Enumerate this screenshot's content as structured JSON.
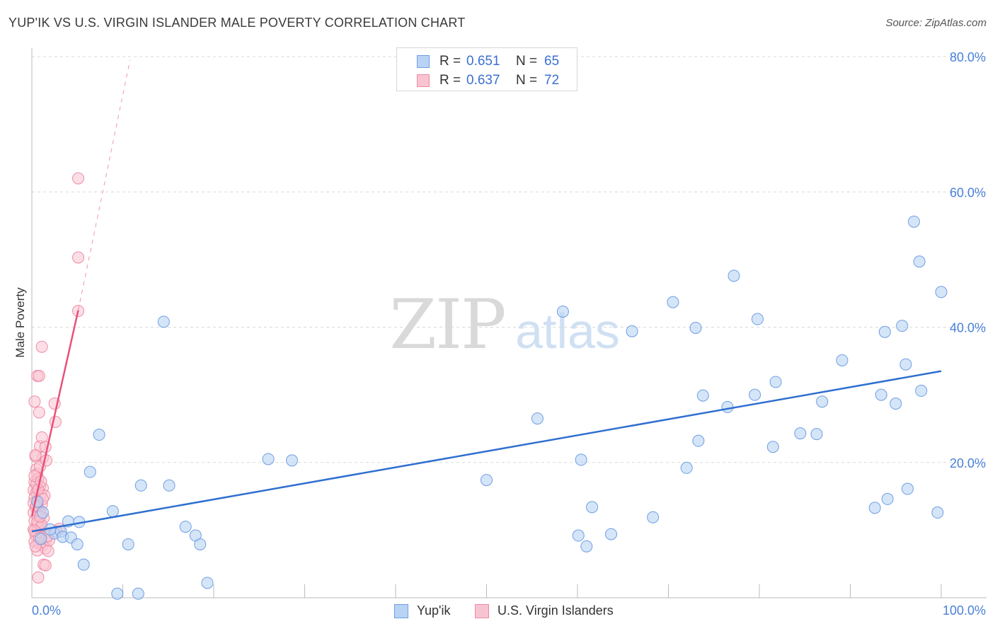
{
  "header": {
    "title": "YUP'IK VS U.S. VIRGIN ISLANDER MALE POVERTY CORRELATION CHART",
    "source": "Source: ZipAtlas.com"
  },
  "legend_top": {
    "rows": [
      {
        "r_label": "R =",
        "r_value": "0.651",
        "n_label": "N =",
        "n_value": "65"
      },
      {
        "r_label": "R =",
        "r_value": "0.637",
        "n_label": "N =",
        "n_value": "72"
      }
    ]
  },
  "legend_bottom": {
    "items": [
      "Yup'ik",
      "U.S. Virgin Islanders"
    ]
  },
  "watermark": {
    "zip": "ZIP",
    "atlas": "atlas"
  },
  "colors": {
    "blue_fill": "#b9d3f4",
    "blue_stroke": "#6f9ee3",
    "blue_line": "#2f6fd0",
    "pink_fill": "#f9c4d2",
    "pink_stroke": "#ee8aa5",
    "pink_line": "#e8507a",
    "tick_label": "#4a80d8"
  },
  "chart_data": {
    "type": "scatter",
    "title": "YUP'IK VS U.S. VIRGIN ISLANDER MALE POVERTY CORRELATION CHART",
    "xlabel": "",
    "ylabel": "Male Poverty",
    "xlim": [
      0,
      100
    ],
    "ylim": [
      0,
      80
    ],
    "x_tick_labels": [
      "0.0%",
      "100.0%"
    ],
    "y_ticks": [
      20,
      40,
      60,
      80
    ],
    "y_tick_labels": [
      "20.0%",
      "40.0%",
      "60.0%",
      "80.0%"
    ],
    "grid": true,
    "legend_position": "top-center",
    "series": [
      {
        "name": "Yup'ik",
        "r": 0.651,
        "n": 65,
        "trend": {
          "x": [
            0,
            100
          ],
          "y": [
            9.8,
            33.5
          ],
          "style": "solid"
        },
        "points": [
          [
            1.0,
            8.7
          ],
          [
            2.5,
            9.5
          ],
          [
            3.2,
            9.8
          ],
          [
            3.4,
            9.0
          ],
          [
            4.0,
            11.3
          ],
          [
            4.3,
            8.9
          ],
          [
            5.0,
            7.9
          ],
          [
            5.2,
            11.2
          ],
          [
            5.7,
            4.9
          ],
          [
            6.4,
            18.6
          ],
          [
            7.4,
            24.1
          ],
          [
            8.9,
            12.8
          ],
          [
            9.4,
            0.6
          ],
          [
            10.6,
            7.9
          ],
          [
            11.7,
            0.6
          ],
          [
            12.0,
            16.6
          ],
          [
            14.5,
            40.8
          ],
          [
            15.1,
            16.6
          ],
          [
            16.9,
            10.5
          ],
          [
            18.0,
            9.2
          ],
          [
            18.5,
            7.9
          ],
          [
            19.3,
            2.2
          ],
          [
            26.0,
            20.5
          ],
          [
            28.6,
            20.3
          ],
          [
            50.0,
            17.4
          ],
          [
            55.6,
            26.5
          ],
          [
            58.4,
            42.3
          ],
          [
            60.1,
            9.2
          ],
          [
            60.4,
            20.4
          ],
          [
            61.0,
            7.6
          ],
          [
            61.6,
            13.4
          ],
          [
            63.7,
            9.4
          ],
          [
            66.0,
            39.4
          ],
          [
            68.3,
            11.9
          ],
          [
            70.5,
            43.7
          ],
          [
            72.0,
            19.2
          ],
          [
            73.0,
            39.9
          ],
          [
            73.3,
            23.2
          ],
          [
            73.8,
            29.9
          ],
          [
            76.5,
            28.2
          ],
          [
            77.2,
            47.6
          ],
          [
            79.5,
            30.0
          ],
          [
            79.8,
            41.2
          ],
          [
            81.5,
            22.3
          ],
          [
            81.8,
            31.9
          ],
          [
            84.5,
            24.3
          ],
          [
            86.3,
            24.2
          ],
          [
            86.9,
            29.0
          ],
          [
            89.1,
            35.1
          ],
          [
            92.7,
            13.3
          ],
          [
            93.4,
            30.0
          ],
          [
            93.8,
            39.3
          ],
          [
            94.1,
            14.6
          ],
          [
            95.0,
            28.7
          ],
          [
            95.7,
            40.2
          ],
          [
            96.1,
            34.5
          ],
          [
            96.3,
            16.1
          ],
          [
            97.0,
            55.6
          ],
          [
            97.6,
            49.7
          ],
          [
            97.8,
            30.6
          ],
          [
            99.6,
            12.6
          ],
          [
            100.0,
            45.2
          ],
          [
            1.2,
            12.6
          ],
          [
            2.0,
            10.1
          ],
          [
            0.6,
            14.2
          ]
        ]
      },
      {
        "name": "U.S. Virgin Islanders",
        "r": 0.637,
        "n": 72,
        "trend": {
          "x": [
            0,
            5.1
          ],
          "y": [
            12.0,
            42.5
          ],
          "style": "solid",
          "extended_x": [
            5.1,
            10.8
          ],
          "extended_y": [
            42.5,
            79.5
          ]
        },
        "points": [
          [
            0.3,
            29.0
          ],
          [
            0.6,
            32.8
          ],
          [
            0.8,
            32.8
          ],
          [
            1.1,
            37.1
          ],
          [
            0.8,
            27.4
          ],
          [
            0.9,
            22.4
          ],
          [
            1.1,
            23.7
          ],
          [
            1.5,
            22.3
          ],
          [
            1.2,
            20.7
          ],
          [
            2.5,
            28.7
          ],
          [
            2.6,
            26.0
          ],
          [
            0.4,
            20.9
          ],
          [
            0.5,
            19.0
          ],
          [
            0.6,
            18.3
          ],
          [
            0.7,
            17.6
          ],
          [
            0.3,
            17.1
          ],
          [
            0.9,
            16.5
          ],
          [
            1.2,
            16.2
          ],
          [
            0.2,
            15.9
          ],
          [
            0.5,
            15.6
          ],
          [
            1.0,
            15.2
          ],
          [
            0.3,
            14.8
          ],
          [
            0.7,
            14.3
          ],
          [
            1.1,
            13.8
          ],
          [
            0.4,
            13.4
          ],
          [
            0.8,
            13.0
          ],
          [
            0.2,
            12.6
          ],
          [
            0.6,
            12.1
          ],
          [
            1.3,
            11.8
          ],
          [
            0.3,
            11.4
          ],
          [
            0.7,
            10.9
          ],
          [
            1.0,
            10.4
          ],
          [
            0.2,
            10.1
          ],
          [
            0.5,
            9.7
          ],
          [
            1.4,
            9.6
          ],
          [
            0.4,
            9.3
          ],
          [
            0.9,
            9.0
          ],
          [
            1.6,
            8.6
          ],
          [
            0.3,
            8.3
          ],
          [
            0.8,
            8.0
          ],
          [
            1.2,
            7.8
          ],
          [
            1.5,
            7.3
          ],
          [
            0.6,
            7.0
          ],
          [
            1.8,
            6.9
          ],
          [
            1.3,
            4.9
          ],
          [
            1.5,
            4.8
          ],
          [
            0.7,
            3.0
          ],
          [
            3.0,
            10.2
          ],
          [
            2.7,
            9.8
          ],
          [
            1.9,
            8.5
          ],
          [
            5.1,
            42.4
          ],
          [
            5.1,
            50.3
          ],
          [
            5.1,
            62.0
          ],
          [
            0.4,
            21.1
          ],
          [
            0.9,
            19.4
          ],
          [
            0.5,
            16.8
          ],
          [
            1.4,
            15.1
          ],
          [
            0.2,
            14.0
          ],
          [
            1.0,
            12.4
          ],
          [
            0.6,
            11.2
          ],
          [
            1.1,
            10.7
          ],
          [
            0.3,
            9.9
          ],
          [
            1.7,
            9.1
          ],
          [
            0.8,
            8.8
          ],
          [
            0.4,
            7.6
          ],
          [
            1.2,
            14.6
          ],
          [
            0.7,
            16.0
          ],
          [
            0.5,
            13.6
          ],
          [
            0.9,
            12.0
          ],
          [
            1.6,
            20.3
          ],
          [
            0.3,
            18.0
          ],
          [
            1.0,
            17.2
          ]
        ]
      }
    ]
  }
}
